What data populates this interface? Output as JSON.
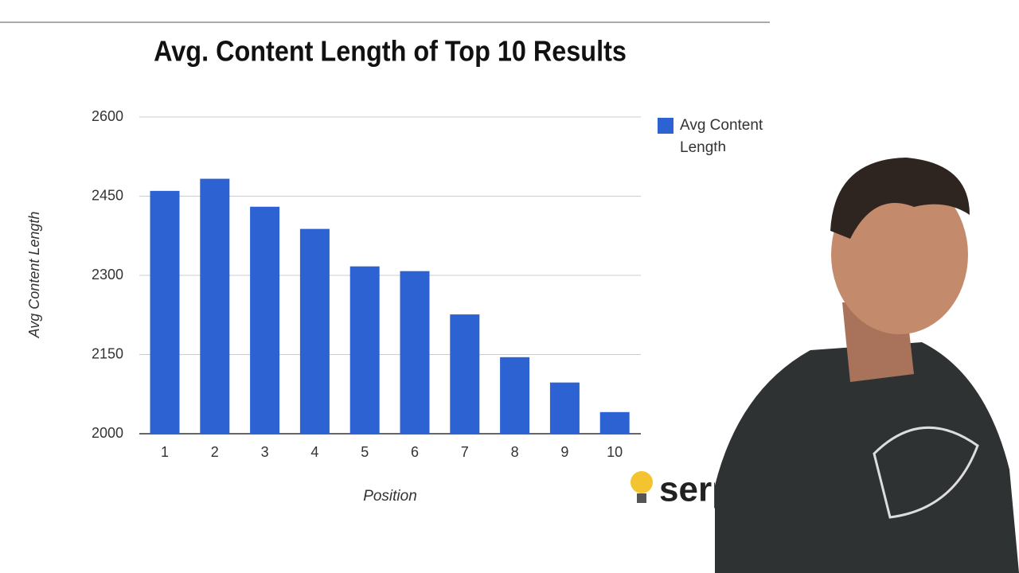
{
  "chart_data": {
    "type": "bar",
    "title": "Avg. Content Length of Top 10 Results",
    "x_label": "Position",
    "y_label": "Avg Content Length",
    "categories": [
      "1",
      "2",
      "3",
      "4",
      "5",
      "6",
      "7",
      "8",
      "9",
      "10"
    ],
    "series": [
      {
        "name": "Avg Content Length",
        "color": "#2d62d2",
        "values": [
          2460,
          2483,
          2430,
          2388,
          2317,
          2308,
          2226,
          2145,
          2097,
          2041
        ]
      }
    ],
    "ylim": [
      2000,
      2600
    ],
    "yticks": [
      2000,
      2150,
      2300,
      2450,
      2600
    ],
    "grid": true,
    "legend": "right",
    "watermark": "serp"
  }
}
